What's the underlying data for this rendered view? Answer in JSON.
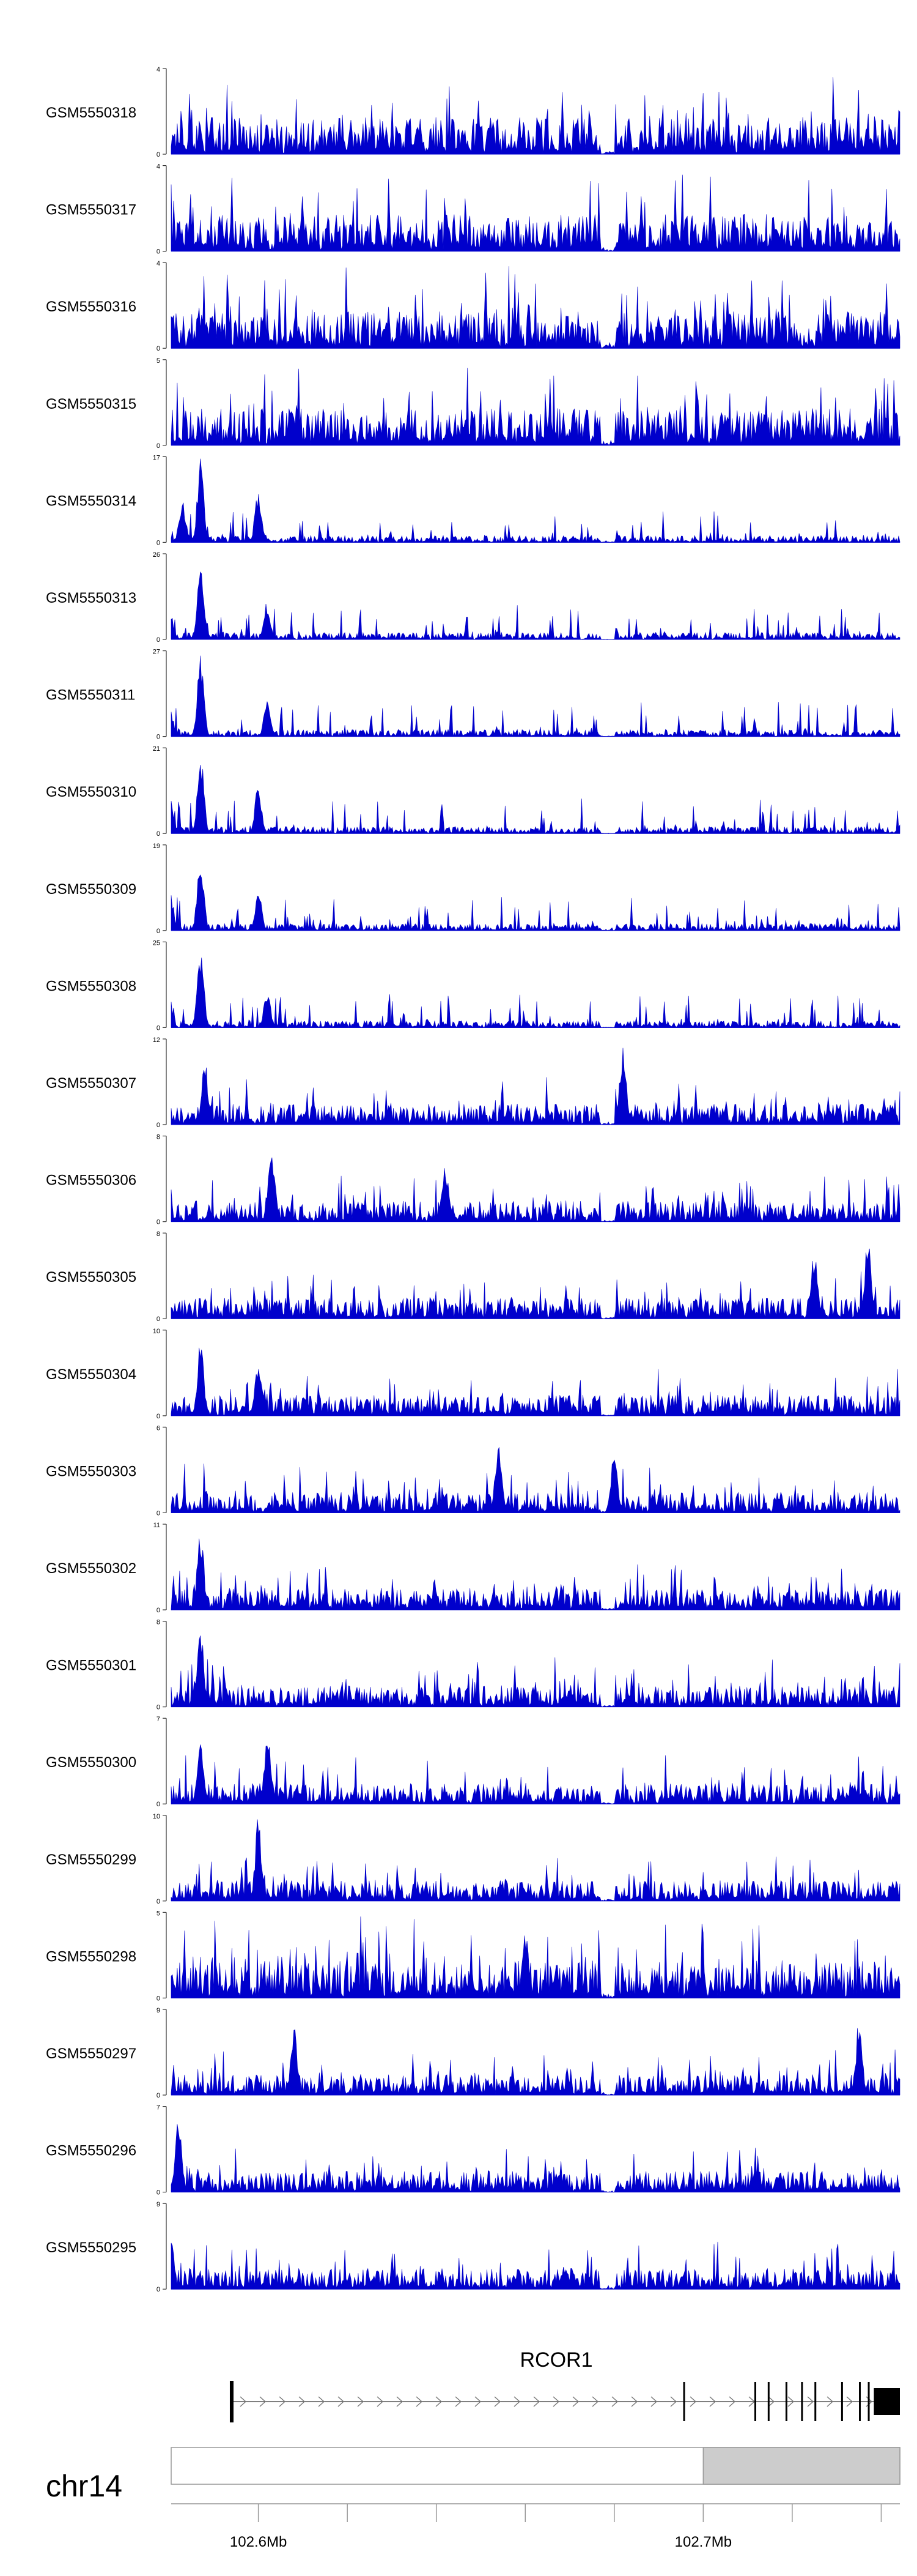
{
  "chart_data": {
    "type": "area",
    "tracks": [
      {
        "name": "GSM5550318",
        "ymax": 4,
        "peaks": []
      },
      {
        "name": "GSM5550317",
        "ymax": 4,
        "peaks": []
      },
      {
        "name": "GSM5550316",
        "ymax": 4,
        "peaks": []
      },
      {
        "name": "GSM5550315",
        "ymax": 5,
        "peaks": []
      },
      {
        "name": "GSM5550314",
        "ymax": 17,
        "peaks": [
          [
            102.587,
            17
          ],
          [
            102.6,
            11
          ],
          [
            102.583,
            9
          ]
        ]
      },
      {
        "name": "GSM5550313",
        "ymax": 26,
        "peaks": [
          [
            102.587,
            26
          ],
          [
            102.602,
            12
          ],
          [
            102.58,
            10
          ]
        ]
      },
      {
        "name": "GSM5550311",
        "ymax": 27,
        "peaks": [
          [
            102.587,
            27
          ],
          [
            102.602,
            13
          ],
          [
            102.58,
            12
          ]
        ]
      },
      {
        "name": "GSM5550310",
        "ymax": 21,
        "peaks": [
          [
            102.587,
            21
          ],
          [
            102.6,
            13
          ],
          [
            102.58,
            11
          ]
        ]
      },
      {
        "name": "GSM5550309",
        "ymax": 19,
        "peaks": [
          [
            102.587,
            19
          ],
          [
            102.6,
            9
          ],
          [
            102.58,
            10
          ]
        ]
      },
      {
        "name": "GSM5550308",
        "ymax": 25,
        "peaks": [
          [
            102.587,
            25
          ],
          [
            102.602,
            12
          ],
          [
            102.58,
            9
          ]
        ]
      },
      {
        "name": "GSM5550307",
        "ymax": 12,
        "peaks": [
          [
            102.682,
            12
          ],
          [
            102.588,
            9
          ]
        ]
      },
      {
        "name": "GSM5550306",
        "ymax": 8,
        "peaks": [
          [
            102.603,
            8
          ],
          [
            102.642,
            6
          ]
        ]
      },
      {
        "name": "GSM5550305",
        "ymax": 8,
        "peaks": [
          [
            102.737,
            8
          ],
          [
            102.725,
            7
          ]
        ]
      },
      {
        "name": "GSM5550304",
        "ymax": 10,
        "peaks": [
          [
            102.587,
            9
          ],
          [
            102.6,
            7
          ]
        ]
      },
      {
        "name": "GSM5550303",
        "ymax": 6,
        "peaks": [
          [
            102.654,
            6
          ],
          [
            102.68,
            5
          ]
        ]
      },
      {
        "name": "GSM5550302",
        "ymax": 11,
        "peaks": [
          [
            102.587,
            11
          ]
        ]
      },
      {
        "name": "GSM5550301",
        "ymax": 8,
        "peaks": [
          [
            102.587,
            8
          ]
        ]
      },
      {
        "name": "GSM5550300",
        "ymax": 7,
        "peaks": [
          [
            102.602,
            6
          ],
          [
            102.587,
            5
          ]
        ]
      },
      {
        "name": "GSM5550299",
        "ymax": 10,
        "peaks": [
          [
            102.6,
            10
          ]
        ]
      },
      {
        "name": "GSM5550298",
        "ymax": 5,
        "peaks": [
          [
            102.66,
            4
          ]
        ]
      },
      {
        "name": "GSM5550297",
        "ymax": 9,
        "peaks": [
          [
            102.608,
            8
          ],
          [
            102.735,
            8
          ]
        ]
      },
      {
        "name": "GSM5550296",
        "ymax": 7,
        "peaks": [
          [
            102.582,
            6
          ]
        ]
      },
      {
        "name": "GSM5550295",
        "ymax": 9,
        "peaks": [
          [
            102.58,
            9
          ]
        ]
      }
    ],
    "x_range": [
      102.5804,
      102.7442
    ],
    "x_unit": "Mb",
    "xticks": [
      102.6,
      102.7
    ],
    "xtick_labels": [
      "102.6Mb",
      "102.7Mb"
    ],
    "chromosome": "chr14",
    "highlight_region": [
      102.7,
      102.7442
    ],
    "gene": {
      "name": "RCOR1",
      "start": 102.594,
      "end": 102.7442,
      "strand": "+",
      "exons": [
        102.594,
        102.6957,
        102.7117,
        102.7147,
        102.7187,
        102.7222,
        102.7252,
        102.7312,
        102.7352,
        102.7372,
        102.74
      ]
    },
    "series_color": "#0000CC"
  }
}
